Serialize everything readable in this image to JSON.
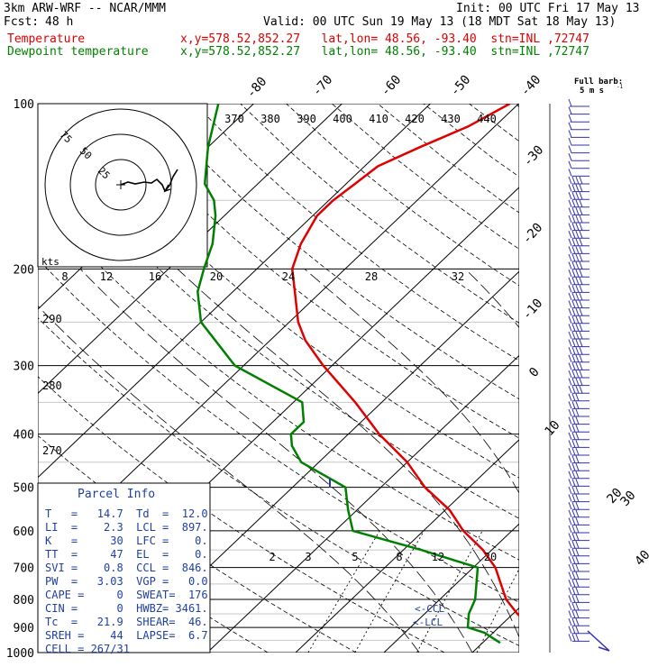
{
  "header": {
    "model": "3km ARW-WRF -- NCAR/MMM",
    "init": "Init: 00 UTC Fri 17 May 13",
    "fcst_label": "Fcst:",
    "fcst_value": "48 h",
    "valid": "Valid: 00 UTC Sun 19 May 13 (18 MDT Sat 18 May 13)",
    "temp_label": "Temperature",
    "dew_label": "Dewpoint temperature",
    "temp_info": "x,y=578.52,852.27   lat,lon= 48.56, -93.40  stn=INL ,72747",
    "dew_info": "x,y=578.52,852.27   lat,lon= 48.56, -93.40  stn=INL ,72747"
  },
  "colors": {
    "temperature": "#e00000",
    "dewpoint": "#008000",
    "barbs": "#3030b0",
    "box_text": "#2040a0"
  },
  "barb_note": {
    "line1": "Full barb:",
    "line2": "5 m s",
    "sup": "-1"
  },
  "chart_data": {
    "type": "line",
    "chart_kind": "skew-T log-P sounding",
    "pressure_axis": {
      "levels": [
        100,
        200,
        300,
        400,
        500,
        600,
        700,
        800,
        900,
        1000
      ],
      "ylim": [
        1000,
        100
      ],
      "scale": "log"
    },
    "isotherm_labels": [
      "-80",
      "-70",
      "-60",
      "-50",
      "-40",
      "-30",
      "-20",
      "-10",
      "0",
      "10",
      "20",
      "30",
      "40"
    ],
    "theta_e_labels": [
      "370",
      "380",
      "390",
      "400",
      "410",
      "420",
      "430",
      "440"
    ],
    "theta_labels": [
      "290",
      "280",
      "270"
    ],
    "mixing_ratio_labels": [
      "2",
      "3",
      "5",
      "8",
      "12",
      "20"
    ],
    "hodograph_speed_labels": [
      "8",
      "12",
      "16",
      "20",
      "24",
      "28",
      "32"
    ],
    "hodograph_ring_labels": [
      "75",
      "50",
      "25"
    ],
    "hodograph_units": "kts",
    "series": [
      {
        "name": "Temperature",
        "pressure": [
          960,
          920,
          900,
          850,
          800,
          700,
          650,
          600,
          550,
          500,
          450,
          400,
          350,
          300,
          270,
          250,
          220,
          200,
          180,
          160,
          150,
          140,
          130,
          120,
          110,
          100
        ],
        "values": [
          14.7,
          15.2,
          14.0,
          10.5,
          7.5,
          2.5,
          -1.0,
          -5.5,
          -9.5,
          -15.0,
          -20.0,
          -26.5,
          -33.0,
          -41.0,
          -46.0,
          -49.0,
          -53.0,
          -56.0,
          -58.0,
          -59.5,
          -59.5,
          -59.0,
          -58.5,
          -56.0,
          -53.0,
          -51.0
        ]
      },
      {
        "name": "Dewpoint temperature",
        "pressure": [
          960,
          920,
          900,
          850,
          800,
          700,
          650,
          600,
          550,
          500,
          450,
          420,
          400,
          380,
          350,
          300,
          250,
          220,
          200,
          180,
          160,
          150,
          140,
          120,
          100
        ],
        "values": [
          12.0,
          9.0,
          6.5,
          5.0,
          4.0,
          0.5,
          -8.0,
          -18.0,
          -21.0,
          -24.0,
          -32.0,
          -35.0,
          -36.5,
          -36.5,
          -39.0,
          -51.0,
          -60.0,
          -64.0,
          -66.0,
          -68.0,
          -71.0,
          -73.0,
          -76.0,
          -80.0,
          -84.0
        ]
      }
    ],
    "annotations": [
      "<-CCL",
      "<-LCL"
    ]
  },
  "parcel_info": {
    "title": "Parcel Info",
    "rows": [
      "T   =   14.7  Td  =  12.0",
      "LI  =    2.3  LCL =  897.",
      "K   =     30  LFC =    0.",
      "TT  =     47  EL  =    0.",
      "SVI =    0.8  CCL =  846.",
      "PW  =   3.03  VGP =   0.0",
      "CAPE =     0  SWEAT=  176",
      "CIN =      0  HWBZ= 3461.",
      "Tc  =   21.9  SHEAR=  46.",
      "SREH =    44  LAPSE=  6.7",
      "CELL = 267/31"
    ]
  }
}
